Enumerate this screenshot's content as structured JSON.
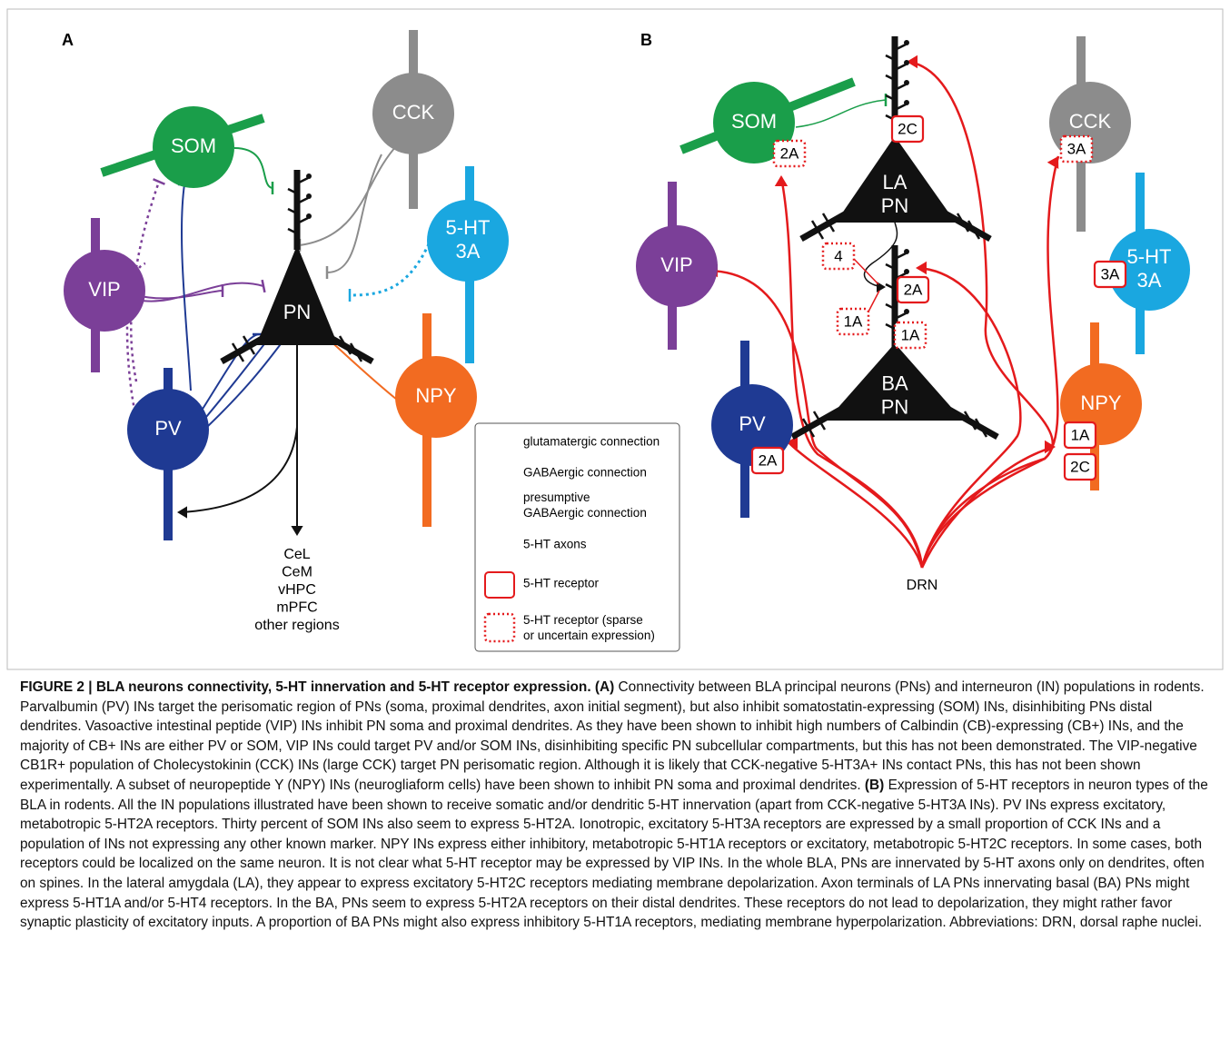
{
  "panel_a": {
    "label": "A",
    "nodes": {
      "som": {
        "label_lines": [
          "SOM"
        ]
      },
      "cck": {
        "label_lines": [
          "CCK"
        ]
      },
      "vip": {
        "label_lines": [
          "VIP"
        ]
      },
      "pn": {
        "label_lines": [
          "PN"
        ]
      },
      "ht3a": {
        "label_lines": [
          "5-HT",
          "3A"
        ]
      },
      "npy": {
        "label_lines": [
          "NPY"
        ]
      },
      "pv": {
        "label_lines": [
          "PV"
        ]
      }
    },
    "targets": [
      "CeL",
      "CeM",
      "vHPC",
      "mPFC",
      "other regions"
    ]
  },
  "panel_b": {
    "label": "B",
    "nodes": {
      "som": {
        "label_lines": [
          "SOM"
        ]
      },
      "cck": {
        "label_lines": [
          "CCK"
        ]
      },
      "vip": {
        "label_lines": [
          "VIP"
        ]
      },
      "la_pn": {
        "label_lines": [
          "LA",
          "PN"
        ]
      },
      "ba_pn": {
        "label_lines": [
          "BA",
          "PN"
        ]
      },
      "ht3a": {
        "label_lines": [
          "5-HT",
          "3A"
        ]
      },
      "npy": {
        "label_lines": [
          "NPY"
        ]
      },
      "pv": {
        "label_lines": [
          "PV"
        ]
      }
    },
    "source": "DRN",
    "receptors": [
      {
        "label": "2C",
        "style": "solid"
      },
      {
        "label": "2A",
        "style": "dotted"
      },
      {
        "label": "3A",
        "style": "dotted"
      },
      {
        "label": "4",
        "style": "dotted"
      },
      {
        "label": "2A",
        "style": "solid"
      },
      {
        "label": "1A",
        "style": "dotted"
      },
      {
        "label": "1A",
        "style": "dotted"
      },
      {
        "label": "3A",
        "style": "solid"
      },
      {
        "label": "2A",
        "style": "solid"
      },
      {
        "label": "1A",
        "style": "solid"
      },
      {
        "label": "2C",
        "style": "solid"
      }
    ]
  },
  "legend": {
    "entries": [
      {
        "lines": [
          "glutamatergic connection"
        ]
      },
      {
        "lines": [
          "GABAergic connection"
        ]
      },
      {
        "lines": [
          "presumptive",
          "GABAergic connection"
        ]
      },
      {
        "lines": [
          "5-HT axons"
        ]
      },
      {
        "lines": [
          "5-HT receptor"
        ]
      },
      {
        "lines": [
          "5-HT receptor (sparse",
          "or uncertain expression)"
        ]
      }
    ]
  },
  "caption": {
    "title": "FIGURE 2 | BLA neurons connectivity, 5-HT innervation and 5-HT receptor expression.",
    "a_label": "(A)",
    "a_text": "Connectivity between BLA principal neurons (PNs) and interneuron (IN) populations in rodents. Parvalbumin (PV) INs target the perisomatic region of PNs (soma, proximal dendrites, axon initial segment), but also inhibit somatostatin-expressing (SOM) INs, disinhibiting PNs distal dendrites. Vasoactive intestinal peptide (VIP) INs inhibit PN soma and proximal dendrites. As they have been shown to inhibit high numbers of Calbindin (CB)-expressing (CB+) INs, and the majority of CB+ INs are either PV or SOM, VIP INs could target PV and/or SOM INs, disinhibiting specific PN subcellular compartments, but this has not been demonstrated. The VIP-negative CB1R+ population of Cholecystokinin (CCK) INs (large CCK) target PN perisomatic region. Although it is likely that CCK-negative 5-HT3A+ INs contact PNs, this has not been shown experimentally. A subset of neuropeptide Y (NPY) INs (neurogliaform cells) have been shown to inhibit PN soma and proximal dendrites.",
    "b_label": "(B)",
    "b_text": "Expression of 5-HT receptors in neuron types of the BLA in rodents. All the IN populations illustrated have been shown to receive somatic and/or dendritic 5-HT innervation (apart from CCK-negative 5-HT3A INs). PV INs express excitatory, metabotropic 5-HT2A receptors. Thirty percent of SOM INs also seem to express 5-HT2A. Ionotropic, excitatory 5-HT3A receptors are expressed by a small proportion of CCK INs and a population of INs not expressing any other known marker. NPY INs express either inhibitory, metabotropic 5-HT1A receptors or excitatory, metabotropic 5-HT2C receptors. In some cases, both receptors could be localized on the same neuron. It is not clear what 5-HT receptor may be expressed by VIP INs. In the whole BLA, PNs are innervated by 5-HT axons only on dendrites, often on spines. In the lateral amygdala (LA), they appear to express excitatory 5-HT2C receptors mediating membrane depolarization. Axon terminals of LA PNs innervating basal (BA) PNs might express 5-HT1A and/or 5-HT4 receptors. In the BA, PNs seem to express 5-HT2A receptors on their distal dendrites. These receptors do not lead to depolarization, they might rather favor synaptic plasticity of excitatory inputs. A proportion of BA PNs might also express inhibitory 5-HT1A receptors, mediating membrane hyperpolarization. Abbreviations: DRN, dorsal raphe nuclei."
  }
}
